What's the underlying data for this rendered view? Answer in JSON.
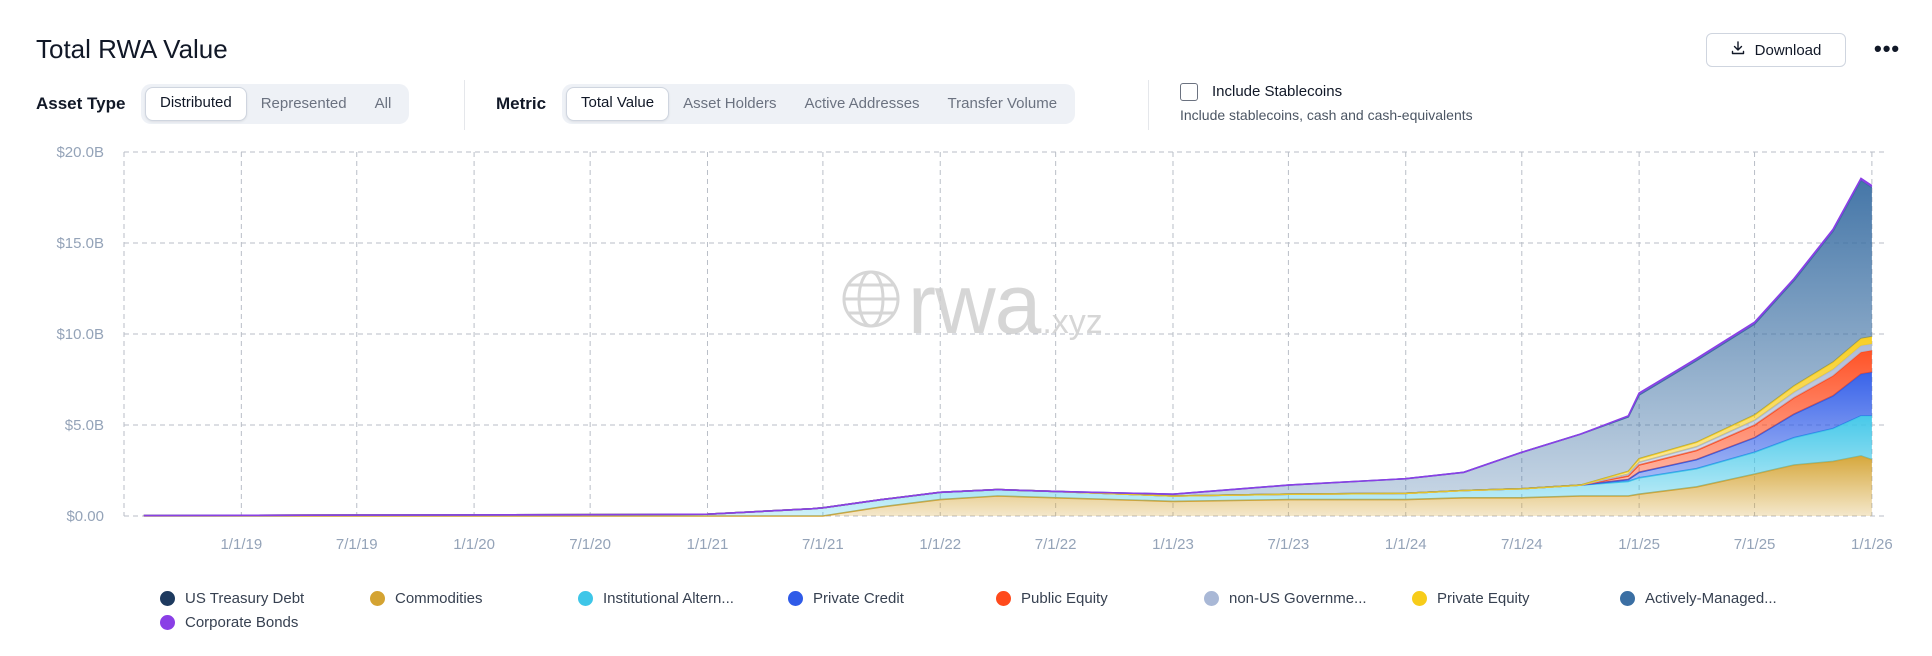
{
  "header": {
    "title": "Total RWA Value",
    "download_label": "Download",
    "download_icon": "download-icon",
    "more_label": "•••"
  },
  "filters": {
    "asset_type_label": "Asset Type",
    "asset_type_options": [
      "Distributed",
      "Represented",
      "All"
    ],
    "asset_type_selected": "Distributed",
    "metric_label": "Metric",
    "metric_options": [
      "Total Value",
      "Asset Holders",
      "Active Addresses",
      "Transfer Volume"
    ],
    "metric_selected": "Total Value",
    "stablecoins_label": "Include Stablecoins",
    "stablecoins_sub": "Include stablecoins, cash and cash-equivalents",
    "stablecoins_checked": false
  },
  "watermark": {
    "main": "rwa",
    "suffix": ".xyz",
    "icon": "globe-icon"
  },
  "chart_data": {
    "type": "area",
    "stacked": true,
    "y_ticks": [
      "$0.00",
      "$5.0B",
      "$10.0B",
      "$15.0B",
      "$20.0B"
    ],
    "ylim": [
      0,
      20
    ],
    "y_unit": "$B",
    "x_ticks": [
      "1/1/19",
      "7/1/19",
      "1/1/20",
      "7/1/20",
      "1/1/21",
      "7/1/21",
      "1/1/22",
      "7/1/22",
      "1/1/23",
      "7/1/23",
      "1/1/24",
      "7/1/24",
      "1/1/25",
      "7/1/25",
      "1/1/26"
    ],
    "x_dates": [
      "2018-08-01",
      "2019-01-01",
      "2019-07-01",
      "2020-01-01",
      "2020-07-01",
      "2021-01-01",
      "2021-06-15",
      "2021-07-01",
      "2021-10-01",
      "2022-01-01",
      "2022-04-01",
      "2022-07-01",
      "2023-01-01",
      "2023-07-01",
      "2024-01-01",
      "2024-04-01",
      "2024-07-01",
      "2024-10-01",
      "2024-12-15",
      "2025-01-01",
      "2025-04-01",
      "2025-07-01",
      "2025-09-01",
      "2025-11-01",
      "2025-12-15",
      "2026-01-01"
    ],
    "grid": true,
    "legend_position": "bottom",
    "series": [
      {
        "name": "US Treasury Debt",
        "color": "#1e3a5f",
        "values": [
          0,
          0,
          0,
          0,
          0,
          0,
          0,
          0,
          0,
          0,
          0,
          0,
          0,
          0,
          0,
          0,
          0,
          0,
          0,
          0,
          0,
          0,
          0,
          0,
          0,
          0
        ]
      },
      {
        "name": "Commodities",
        "color": "#d4a332",
        "values": [
          0,
          0,
          0,
          0,
          0,
          0,
          0,
          0,
          0.5,
          0.9,
          1.1,
          1.0,
          0.8,
          0.9,
          0.9,
          1.0,
          1.0,
          1.1,
          1.1,
          1.2,
          1.6,
          2.3,
          2.8,
          3.0,
          3.3,
          3.1
        ]
      },
      {
        "name": "Institutional Altern...",
        "color": "#3ec6e8",
        "values": [
          0.02,
          0.04,
          0.05,
          0.06,
          0.07,
          0.1,
          0.4,
          0.45,
          0.4,
          0.4,
          0.35,
          0.35,
          0.3,
          0.3,
          0.35,
          0.4,
          0.5,
          0.6,
          0.8,
          0.9,
          1.0,
          1.2,
          1.5,
          1.8,
          2.2,
          2.4
        ]
      },
      {
        "name": "Private Credit",
        "color": "#2f5be8",
        "values": [
          0,
          0,
          0,
          0,
          0,
          0,
          0,
          0,
          0,
          0,
          0,
          0,
          0,
          0,
          0,
          0,
          0,
          0,
          0.1,
          0.3,
          0.5,
          0.8,
          1.3,
          1.8,
          2.3,
          2.4
        ]
      },
      {
        "name": "Public Equity",
        "color": "#ff4a1c",
        "values": [
          0,
          0,
          0,
          0,
          0,
          0,
          0,
          0,
          0,
          0,
          0,
          0,
          0,
          0,
          0,
          0,
          0,
          0,
          0.2,
          0.4,
          0.5,
          0.7,
          0.9,
          1.1,
          1.2,
          1.2
        ]
      },
      {
        "name": "non-US Governme...",
        "color": "#a9b8d6",
        "values": [
          0,
          0,
          0,
          0,
          0,
          0,
          0,
          0,
          0,
          0,
          0,
          0,
          0,
          0,
          0,
          0,
          0,
          0,
          0.1,
          0.15,
          0.2,
          0.25,
          0.3,
          0.35,
          0.35,
          0.35
        ]
      },
      {
        "name": "Private Equity",
        "color": "#f7cc1a",
        "values": [
          0,
          0,
          0,
          0,
          0,
          0,
          0,
          0,
          0,
          0,
          0,
          0,
          0,
          0,
          0,
          0,
          0,
          0,
          0.15,
          0.2,
          0.25,
          0.3,
          0.35,
          0.4,
          0.4,
          0.4
        ]
      },
      {
        "name": "Actively-Managed...",
        "color": "#3b6fa3",
        "values": [
          0,
          0,
          0,
          0,
          0,
          0,
          0,
          0,
          0,
          0,
          0,
          0,
          0.1,
          0.5,
          0.8,
          1.0,
          2.0,
          2.8,
          3.0,
          3.5,
          4.5,
          5.0,
          5.8,
          7.2,
          8.7,
          8.2
        ]
      },
      {
        "name": "Corporate Bonds",
        "color": "#8a3fe6",
        "values": [
          0,
          0,
          0,
          0,
          0,
          0,
          0,
          0,
          0,
          0,
          0,
          0,
          0,
          0,
          0,
          0,
          0,
          0,
          0.05,
          0.1,
          0.1,
          0.1,
          0.1,
          0.1,
          0.1,
          0.1
        ]
      }
    ]
  }
}
